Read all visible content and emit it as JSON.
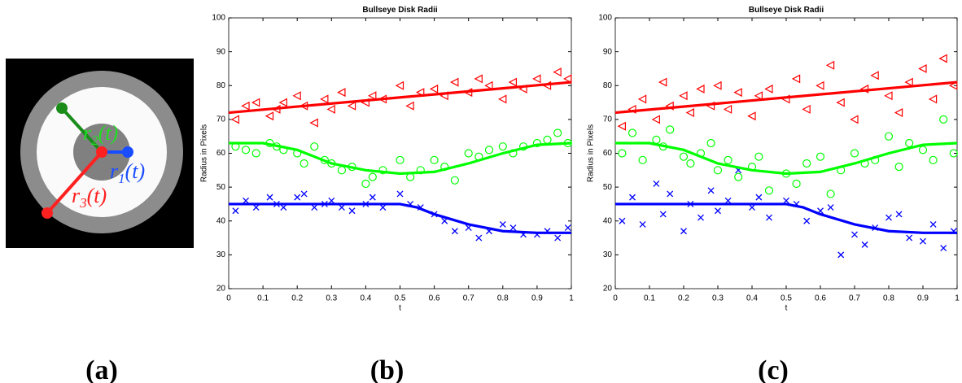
{
  "panel_a": {
    "labels": [
      {
        "base": "r",
        "sub": "2",
        "arg": "(t)"
      },
      {
        "base": "r",
        "sub": "1",
        "arg": "(t)"
      },
      {
        "base": "r",
        "sub": "3",
        "arg": "(t)"
      }
    ],
    "caption": "(a)"
  },
  "chart_data": [
    {
      "type": "scatter",
      "title": "Bullseye Disk Radii",
      "x_label": "t",
      "y_label": "Radius in Pixels",
      "caption": "(b)",
      "xlim": [
        0,
        1
      ],
      "ylim": [
        20,
        100
      ],
      "xticks": [
        0,
        0.1,
        0.2,
        0.3,
        0.4,
        0.5,
        0.6,
        0.7,
        0.8,
        0.9,
        1
      ],
      "yticks": [
        20,
        30,
        40,
        50,
        60,
        70,
        80,
        90,
        100
      ],
      "series": [
        {
          "color": "#ff0000",
          "marker": "triangle-left",
          "x": [
            0.02,
            0.05,
            0.08,
            0.12,
            0.14,
            0.16,
            0.2,
            0.22,
            0.25,
            0.28,
            0.3,
            0.33,
            0.36,
            0.4,
            0.42,
            0.45,
            0.5,
            0.53,
            0.56,
            0.6,
            0.63,
            0.66,
            0.7,
            0.73,
            0.76,
            0.8,
            0.83,
            0.86,
            0.9,
            0.93,
            0.96,
            0.99
          ],
          "values": [
            70,
            74,
            75,
            71,
            73,
            75,
            77,
            74,
            69,
            76,
            73,
            78,
            74,
            75,
            77,
            76,
            80,
            74,
            78,
            79,
            77,
            81,
            78,
            82,
            80,
            76,
            81,
            79,
            82,
            80,
            84,
            82
          ]
        },
        {
          "color": "#00ff00",
          "marker": "circle",
          "x": [
            0.02,
            0.05,
            0.08,
            0.12,
            0.14,
            0.16,
            0.2,
            0.22,
            0.25,
            0.28,
            0.3,
            0.33,
            0.36,
            0.4,
            0.42,
            0.45,
            0.5,
            0.53,
            0.56,
            0.6,
            0.63,
            0.66,
            0.7,
            0.73,
            0.76,
            0.8,
            0.83,
            0.86,
            0.9,
            0.93,
            0.96,
            0.99
          ],
          "values": [
            62,
            61,
            60,
            63,
            62,
            61,
            60,
            57,
            62,
            58,
            57,
            55,
            56,
            51,
            53,
            55,
            58,
            53,
            55,
            58,
            56,
            52,
            60,
            59,
            61,
            62,
            60,
            62,
            63,
            64,
            66,
            63
          ]
        },
        {
          "color": "#0000ff",
          "marker": "x",
          "x": [
            0.02,
            0.05,
            0.08,
            0.12,
            0.14,
            0.16,
            0.2,
            0.22,
            0.25,
            0.28,
            0.3,
            0.33,
            0.36,
            0.4,
            0.42,
            0.45,
            0.5,
            0.53,
            0.56,
            0.6,
            0.63,
            0.66,
            0.7,
            0.73,
            0.76,
            0.8,
            0.83,
            0.86,
            0.9,
            0.93,
            0.96,
            0.99
          ],
          "values": [
            43,
            46,
            44,
            47,
            45,
            44,
            47,
            48,
            44,
            45,
            46,
            44,
            43,
            45,
            47,
            44,
            48,
            45,
            44,
            42,
            40,
            37,
            38,
            35,
            37,
            39,
            38,
            36,
            36,
            37,
            35,
            38
          ]
        },
        {
          "color": "#ff0000",
          "marker": "line",
          "x": [
            0,
            1
          ],
          "values": [
            72,
            81
          ]
        },
        {
          "color": "#00ff00",
          "marker": "line",
          "x": [
            0,
            0.1,
            0.2,
            0.3,
            0.4,
            0.5,
            0.6,
            0.7,
            0.8,
            0.9,
            1
          ],
          "values": [
            63,
            63,
            61,
            57,
            55,
            54,
            54.5,
            57,
            60,
            62.5,
            63
          ]
        },
        {
          "color": "#0000ff",
          "marker": "line",
          "x": [
            0,
            0.1,
            0.2,
            0.3,
            0.4,
            0.5,
            0.55,
            0.6,
            0.7,
            0.8,
            0.9,
            1
          ],
          "values": [
            45,
            45,
            45,
            45,
            45,
            45,
            44,
            42,
            39,
            37,
            36.5,
            36.5
          ]
        }
      ]
    },
    {
      "type": "scatter",
      "title": "Bullseye Disk Radii",
      "x_label": "t",
      "y_label": "Radius in Pixels",
      "caption": "(c)",
      "xlim": [
        0,
        1
      ],
      "ylim": [
        20,
        100
      ],
      "xticks": [
        0,
        0.1,
        0.2,
        0.3,
        0.4,
        0.5,
        0.6,
        0.7,
        0.8,
        0.9,
        1
      ],
      "yticks": [
        20,
        30,
        40,
        50,
        60,
        70,
        80,
        90,
        100
      ],
      "series": [
        {
          "color": "#ff0000",
          "marker": "triangle-left",
          "x": [
            0.02,
            0.05,
            0.08,
            0.12,
            0.14,
            0.16,
            0.2,
            0.22,
            0.25,
            0.28,
            0.3,
            0.33,
            0.36,
            0.4,
            0.42,
            0.45,
            0.5,
            0.53,
            0.56,
            0.6,
            0.63,
            0.66,
            0.7,
            0.73,
            0.76,
            0.8,
            0.83,
            0.86,
            0.9,
            0.93,
            0.96,
            0.99
          ],
          "values": [
            68,
            73,
            76,
            70,
            81,
            74,
            77,
            72,
            79,
            74,
            80,
            73,
            78,
            71,
            77,
            79,
            76,
            82,
            73,
            80,
            86,
            75,
            70,
            79,
            83,
            77,
            72,
            81,
            85,
            76,
            88,
            80
          ]
        },
        {
          "color": "#00ff00",
          "marker": "circle",
          "x": [
            0.02,
            0.05,
            0.08,
            0.12,
            0.14,
            0.16,
            0.2,
            0.22,
            0.25,
            0.28,
            0.3,
            0.33,
            0.36,
            0.4,
            0.42,
            0.45,
            0.5,
            0.53,
            0.56,
            0.6,
            0.63,
            0.66,
            0.7,
            0.73,
            0.76,
            0.8,
            0.83,
            0.86,
            0.9,
            0.93,
            0.96,
            0.99
          ],
          "values": [
            60,
            66,
            58,
            64,
            62,
            67,
            59,
            57,
            60,
            63,
            55,
            58,
            53,
            56,
            59,
            49,
            54,
            51,
            57,
            59,
            48,
            55,
            60,
            57,
            58,
            65,
            56,
            63,
            61,
            58,
            70,
            60
          ]
        },
        {
          "color": "#0000ff",
          "marker": "x",
          "x": [
            0.02,
            0.05,
            0.08,
            0.12,
            0.14,
            0.16,
            0.2,
            0.22,
            0.25,
            0.28,
            0.3,
            0.33,
            0.36,
            0.4,
            0.42,
            0.45,
            0.5,
            0.53,
            0.56,
            0.6,
            0.63,
            0.66,
            0.7,
            0.73,
            0.76,
            0.8,
            0.83,
            0.86,
            0.9,
            0.93,
            0.96,
            0.99
          ],
          "values": [
            40,
            47,
            39,
            51,
            42,
            48,
            37,
            45,
            41,
            49,
            43,
            46,
            55,
            44,
            47,
            41,
            46,
            45,
            40,
            43,
            44,
            30,
            36,
            33,
            38,
            41,
            42,
            35,
            34,
            39,
            32,
            37
          ]
        },
        {
          "color": "#ff0000",
          "marker": "line",
          "x": [
            0,
            1
          ],
          "values": [
            72,
            81
          ]
        },
        {
          "color": "#00ff00",
          "marker": "line",
          "x": [
            0,
            0.1,
            0.2,
            0.3,
            0.4,
            0.5,
            0.6,
            0.7,
            0.8,
            0.9,
            1
          ],
          "values": [
            63,
            63,
            61,
            57,
            55,
            54,
            54.5,
            57,
            60,
            62.5,
            63
          ]
        },
        {
          "color": "#0000ff",
          "marker": "line",
          "x": [
            0,
            0.1,
            0.2,
            0.3,
            0.4,
            0.5,
            0.55,
            0.6,
            0.7,
            0.8,
            0.9,
            1
          ],
          "values": [
            45,
            45,
            45,
            45,
            45,
            45,
            44,
            42,
            39,
            37,
            36.5,
            36.5
          ]
        }
      ]
    }
  ]
}
